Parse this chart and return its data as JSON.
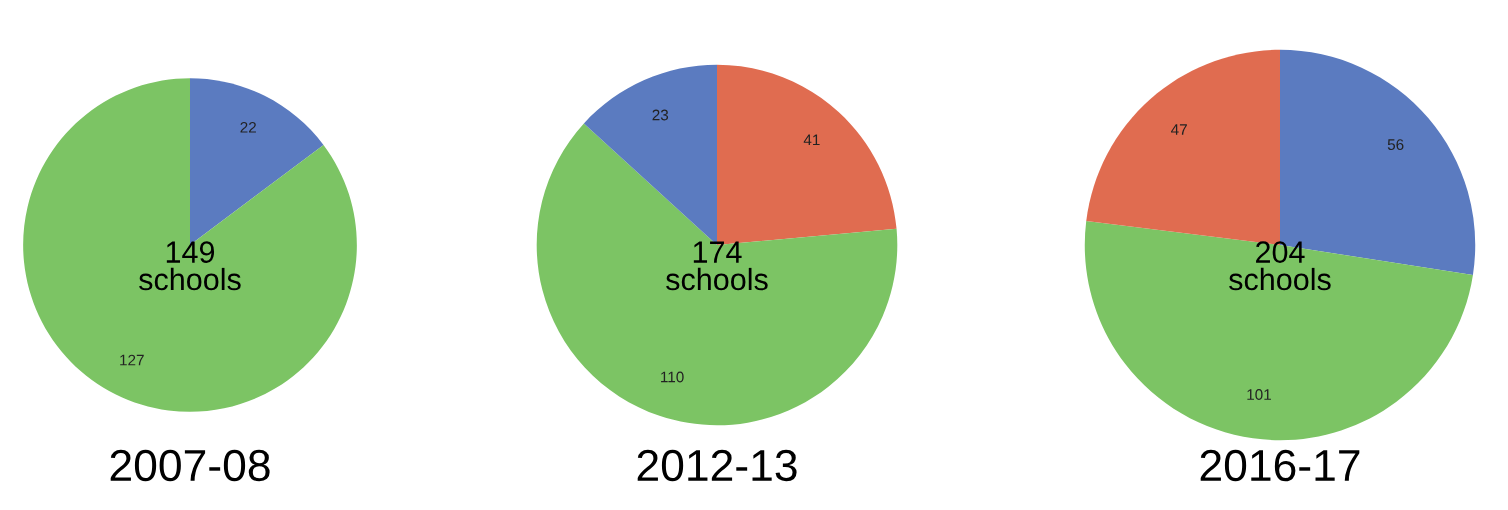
{
  "chart_data": [
    {
      "type": "pie",
      "title": "2007-08",
      "categories": [
        null,
        null
      ],
      "values": [
        22,
        127
      ],
      "colors": [
        "#5b7bc0",
        "#7cc464"
      ],
      "data_labels": true,
      "annotations": [
        "149\nschools"
      ]
    },
    {
      "type": "pie",
      "title": "2012-13",
      "categories": [
        null,
        null,
        null
      ],
      "values": [
        41,
        110,
        23
      ],
      "colors": [
        "#e06c50",
        "#7cc464",
        "#5b7bc0"
      ],
      "data_labels": true,
      "annotations": [
        "174\nschools"
      ]
    },
    {
      "type": "pie",
      "title": "2016-17",
      "categories": [
        null,
        null,
        null
      ],
      "values": [
        56,
        101,
        47
      ],
      "colors": [
        "#5b7bc0",
        "#7cc464",
        "#e06c50"
      ],
      "data_labels": true,
      "annotations": [
        "204\nschools"
      ]
    }
  ]
}
